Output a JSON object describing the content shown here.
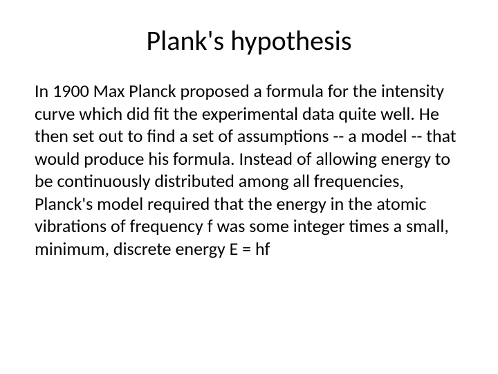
{
  "slide": {
    "title": "Plank's hypothesis",
    "body": "In 1900 Max Planck proposed a formula for the intensity curve which did fit the experimental data quite well. He then set out to find a set of assumptions -- a model -- that would produce his formula. Instead of allowing energy to be continuously distributed among all frequencies, Planck's model required that the energy in the atomic vibrations of frequency f was some integer times a small, minimum, discrete energy E = hf"
  },
  "styles": {
    "background_color": "#ffffff",
    "title_color": "#000000",
    "title_fontsize": 40,
    "title_fontweight": 400,
    "title_align": "center",
    "body_color": "#000000",
    "body_fontsize": 26,
    "body_lineheight": 1.25,
    "font_family": "Calibri",
    "slide_width": 720,
    "slide_height": 540,
    "padding_horizontal": 50,
    "padding_top": 30
  }
}
